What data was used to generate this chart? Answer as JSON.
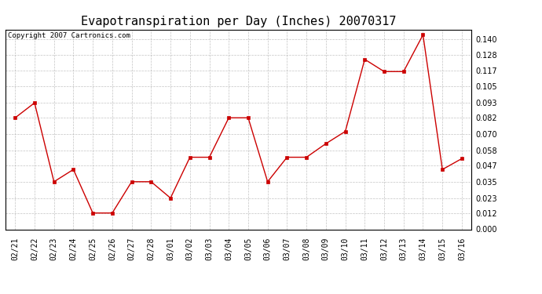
{
  "title": "Evapotranspiration per Day (Inches) 20070317",
  "copyright": "Copyright 2007 Cartronics.com",
  "x_labels": [
    "02/21",
    "02/22",
    "02/23",
    "02/24",
    "02/25",
    "02/26",
    "02/27",
    "02/28",
    "03/01",
    "03/02",
    "03/03",
    "03/04",
    "03/05",
    "03/06",
    "03/07",
    "03/08",
    "03/09",
    "03/10",
    "03/11",
    "03/12",
    "03/13",
    "03/14",
    "03/15",
    "03/16"
  ],
  "y_values": [
    0.082,
    0.093,
    0.035,
    0.044,
    0.012,
    0.012,
    0.035,
    0.035,
    0.023,
    0.053,
    0.053,
    0.082,
    0.082,
    0.035,
    0.053,
    0.053,
    0.063,
    0.072,
    0.125,
    0.116,
    0.116,
    0.143,
    0.044,
    0.052
  ],
  "line_color": "#cc0000",
  "marker": "s",
  "marker_size": 2.5,
  "bg_color": "#ffffff",
  "plot_bg_color": "#ffffff",
  "grid_color": "#aaaaaa",
  "y_ticks": [
    0.0,
    0.012,
    0.023,
    0.035,
    0.047,
    0.058,
    0.07,
    0.082,
    0.093,
    0.105,
    0.117,
    0.128,
    0.14
  ],
  "ylim": [
    0.0,
    0.147
  ],
  "title_fontsize": 11,
  "copyright_fontsize": 6.5,
  "tick_fontsize": 7
}
